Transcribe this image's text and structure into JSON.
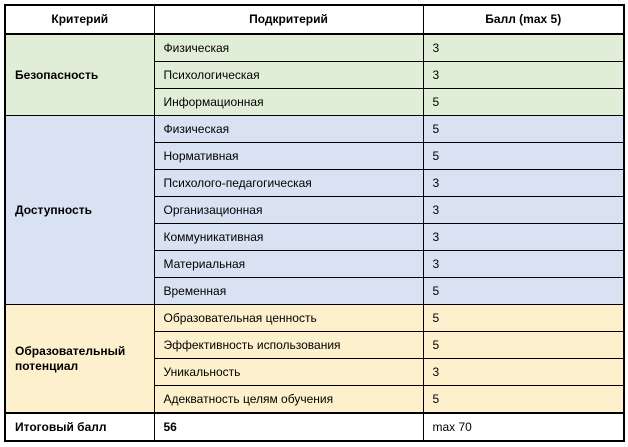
{
  "table": {
    "headers": {
      "criterion": "Критерий",
      "subcriterion": "Подкритерий",
      "score": "Балл (max 5)"
    },
    "groups": [
      {
        "criterion": "Безопасность",
        "color": "#e0eed8",
        "rows": [
          {
            "subcriterion": "Физическая",
            "score": "3"
          },
          {
            "subcriterion": "Психологическая",
            "score": "3"
          },
          {
            "subcriterion": "Информационная",
            "score": "5"
          }
        ]
      },
      {
        "criterion": "Доступность",
        "color": "#d8e2f2",
        "rows": [
          {
            "subcriterion": "Физическая",
            "score": "5"
          },
          {
            "subcriterion": "Нормативная",
            "score": "5"
          },
          {
            "subcriterion": "Психолого-педагогическая",
            "score": "3"
          },
          {
            "subcriterion": "Организационная",
            "score": "3"
          },
          {
            "subcriterion": "Коммуникативная",
            "score": "3"
          },
          {
            "subcriterion": "Материальная",
            "score": "3"
          },
          {
            "subcriterion": "Временная",
            "score": "5"
          }
        ]
      },
      {
        "criterion": "Образовательный потенциал",
        "color": "#fdf0cd",
        "rows": [
          {
            "subcriterion": "Образовательная ценность",
            "score": "5"
          },
          {
            "subcriterion": "Эффективность использования",
            "score": "5"
          },
          {
            "subcriterion": "Уникальность",
            "score": "3"
          },
          {
            "subcriterion": "Адекватность целям обучения",
            "score": "5"
          }
        ]
      }
    ],
    "total": {
      "label": "Итоговый балл",
      "score": "56",
      "max": "max 70"
    }
  },
  "colors": {
    "border": "#000000",
    "header_bg": "#ffffff",
    "group_safety": "#e0eed8",
    "group_accessibility": "#d8e2f2",
    "group_potential": "#fdf0cd"
  }
}
